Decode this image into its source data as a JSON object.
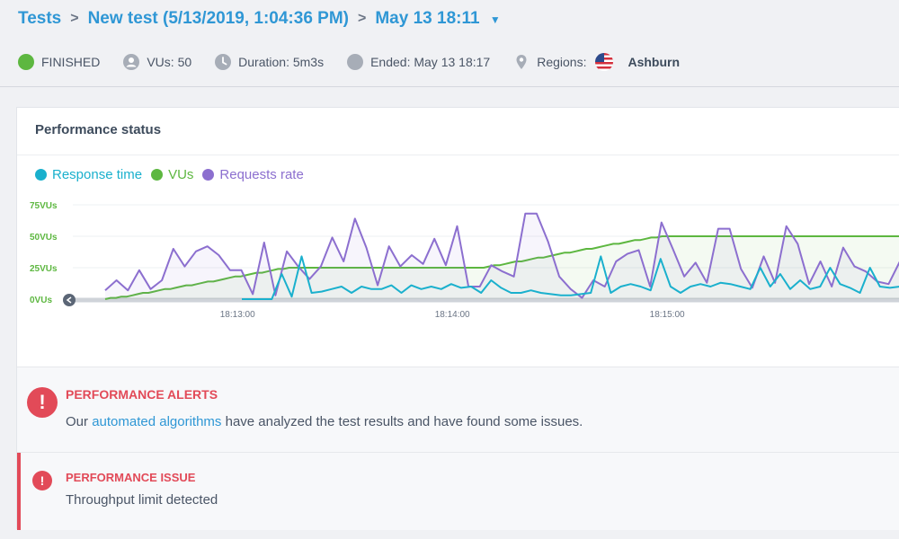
{
  "breadcrumb": {
    "root": "Tests",
    "test": "New test (5/13/2019, 1:04:36 PM)",
    "run": "May 13 18:11",
    "separator": ">"
  },
  "status": {
    "state": "FINISHED",
    "vus_label": "VUs: 50",
    "duration_label": "Duration: 5m3s",
    "ended_label": "Ended: May 13 18:17",
    "regions_label": "Regions:",
    "region": "Ashburn"
  },
  "card": {
    "title": "Performance status"
  },
  "legend": [
    {
      "name": "Response time",
      "color": "#1ab0cd"
    },
    {
      "name": "VUs",
      "color": "#5db740"
    },
    {
      "name": "Requests rate",
      "color": "#8c6fcf"
    }
  ],
  "colors": {
    "accent": "#2f97d5",
    "finished": "#5db740",
    "alert": "#e24a58"
  },
  "chart_data": {
    "type": "line",
    "y_ticks": [
      "75VUs",
      "50VUs",
      "25VUs",
      "0VUs"
    ],
    "y_values": [
      75,
      50,
      25,
      0
    ],
    "ylim": [
      0,
      75
    ],
    "x_ticks": [
      "18:13:00",
      "18:14:00",
      "18:15:00"
    ],
    "x_tick_seconds": [
      120,
      180,
      240
    ],
    "xlim_seconds": [
      74,
      305
    ],
    "grid": true,
    "legend_position": "top-left",
    "series": [
      {
        "name": "VUs",
        "values": [
          0,
          1,
          1,
          2,
          2,
          3,
          4,
          5,
          5,
          6,
          7,
          8,
          8,
          9,
          10,
          11,
          11,
          12,
          13,
          14,
          14,
          15,
          16,
          17,
          18,
          18,
          19,
          20,
          21,
          21,
          22,
          23,
          24,
          24,
          25,
          25,
          25,
          25,
          25,
          25,
          25,
          25,
          25,
          25,
          25,
          25,
          25,
          25,
          25,
          25,
          25,
          25,
          25,
          25,
          25,
          25,
          25,
          25,
          25,
          25,
          25,
          25,
          25,
          25,
          25,
          25,
          25,
          25,
          25,
          25,
          25,
          26,
          27,
          27,
          28,
          29,
          30,
          30,
          31,
          32,
          33,
          33,
          34,
          35,
          36,
          37,
          37,
          38,
          39,
          40,
          40,
          41,
          42,
          43,
          44,
          44,
          45,
          46,
          47,
          47,
          48,
          49,
          49,
          50,
          50,
          50,
          50,
          50,
          50,
          50,
          50,
          50,
          50,
          50,
          50,
          50,
          50,
          50,
          50,
          50,
          50,
          50,
          50,
          50,
          50,
          50,
          50,
          50,
          50,
          50,
          50,
          50,
          50,
          50,
          50,
          50,
          50,
          50,
          50,
          50,
          50,
          50,
          50,
          50,
          50,
          50,
          50,
          50
        ]
      },
      {
        "name": "Requests rate",
        "values": [
          7,
          15,
          7,
          23,
          8,
          15,
          40,
          26,
          38,
          42,
          35,
          23,
          23,
          4,
          45,
          3,
          38,
          26,
          16,
          26,
          49,
          30,
          64,
          41,
          11,
          42,
          26,
          35,
          28,
          48,
          27,
          58,
          10,
          10,
          27,
          22,
          18,
          68,
          68,
          46,
          18,
          8,
          1,
          15,
          10,
          30,
          36,
          39,
          10,
          61,
          40,
          18,
          29,
          13,
          56,
          56,
          24,
          9,
          34,
          13,
          58,
          44,
          12,
          30,
          10,
          41,
          26,
          22,
          14,
          12,
          30
        ]
      },
      {
        "name": "Response time",
        "values": [
          0,
          0,
          0,
          0,
          20,
          2,
          34,
          5,
          6,
          8,
          10,
          5,
          10,
          8,
          8,
          11,
          5,
          11,
          8,
          10,
          8,
          12,
          9,
          10,
          5,
          15,
          9,
          5,
          5,
          7,
          5,
          4,
          3,
          3,
          4,
          5,
          34,
          5,
          10,
          12,
          10,
          7,
          32,
          10,
          5,
          10,
          12,
          10,
          13,
          12,
          10,
          8,
          25,
          10,
          20,
          8,
          15,
          8,
          10,
          25,
          12,
          9,
          5,
          25,
          10,
          9,
          10
        ]
      }
    ]
  },
  "alerts": {
    "icon": "!",
    "title": "PERFORMANCE ALERTS",
    "text_before": "Our ",
    "link_text": "automated algorithms",
    "text_after": " have analyzed the test results and have found some issues."
  },
  "issue": {
    "icon": "!",
    "title": "PERFORMANCE ISSUE",
    "text": "Throughput limit detected"
  }
}
